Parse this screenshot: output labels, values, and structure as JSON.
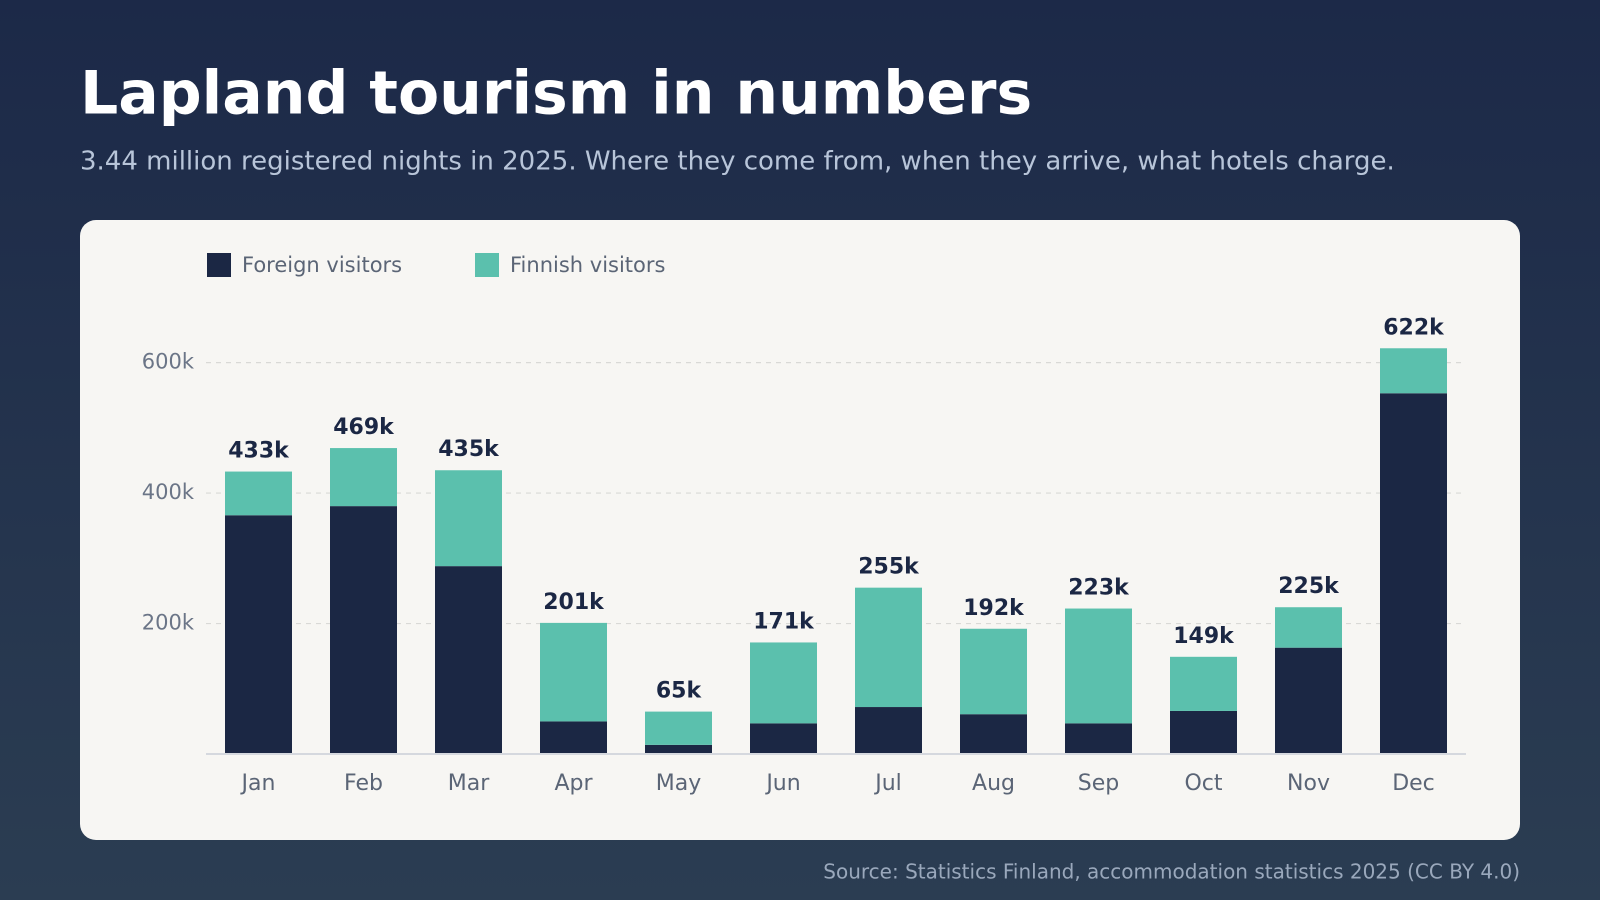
{
  "chart_data": {
    "type": "stacked-bar",
    "title": "Lapland tourism in numbers",
    "subtitle": "3.44 million registered nights in 2025. Where they come from, when they arrive, what hotels charge.",
    "source": "Source: Statistics Finland, accommodation statistics 2025 (CC BY 4.0)",
    "categories": [
      "Jan",
      "Feb",
      "Mar",
      "Apr",
      "May",
      "Jun",
      "Jul",
      "Aug",
      "Sep",
      "Oct",
      "Nov",
      "Dec"
    ],
    "series": [
      {
        "name": "Foreign visitors",
        "color": "#1b2744",
        "values": [
          366000,
          380000,
          288000,
          50000,
          14000,
          47000,
          72000,
          61000,
          47000,
          66000,
          163000,
          553000
        ]
      },
      {
        "name": "Finnish visitors",
        "color": "#5bc0ad",
        "values": [
          67000,
          89000,
          147000,
          151000,
          51000,
          124000,
          183000,
          131000,
          176000,
          83000,
          62000,
          69000
        ]
      }
    ],
    "totals": {
      "values": [
        433000,
        469000,
        435000,
        201000,
        65000,
        171000,
        255000,
        192000,
        223000,
        149000,
        225000,
        622000
      ],
      "value_labels": [
        "433k",
        "469k",
        "435k",
        "201k",
        "65k",
        "171k",
        "255k",
        "192k",
        "223k",
        "149k",
        "225k",
        "622k"
      ]
    },
    "ylim": [
      0,
      650000
    ],
    "yticks": [
      {
        "value": 200000,
        "label": "200k"
      },
      {
        "value": 400000,
        "label": "400k"
      },
      {
        "value": 600000,
        "label": "600k"
      }
    ],
    "grid": true
  }
}
